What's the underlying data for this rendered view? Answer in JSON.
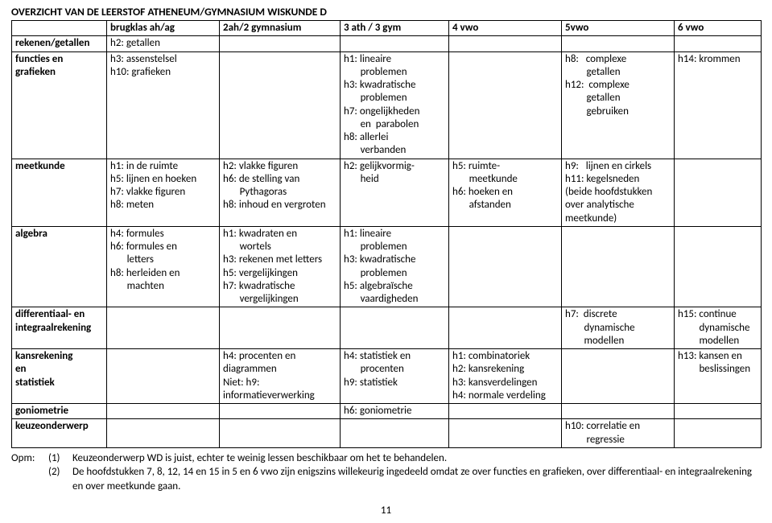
{
  "title": "OVERZICHT VAN DE LEERSTOF ATHENEUM/GYMNASIUM WISKUNDE D",
  "columns": [
    "",
    "brugklas ah/ag",
    "2ah/2 gymnasium",
    "3 ath / 3 gym",
    "4 vwo",
    "5vwo",
    "6 vwo"
  ],
  "rows": [
    {
      "label": "rekenen/getallen",
      "cells": [
        "h2: getallen",
        "",
        "",
        "",
        "",
        ""
      ]
    },
    {
      "label": "functies en\ngrafieken",
      "cells": [
        "h3: assenstelsel\nh10: grafieken",
        "",
        "h1: lineaire\n       problemen\nh3: kwadratische\n       problemen\nh7: ongelijkheden\n       en  parabolen\nh8: allerlei\n       verbanden",
        "",
        "h8:   complexe\n         getallen\nh12:  complexe\n         getallen\n         gebruiken",
        "h14: krommen"
      ]
    },
    {
      "label": "meetkunde",
      "cells": [
        "h1: in de ruimte\nh5: lijnen en hoeken\nh7: vlakke figuren\nh8: meten",
        "h2: vlakke figuren\nh6: de stelling van\n       Pythagoras\nh8: inhoud en vergroten",
        "h2: gelijkvormig-\n       heid",
        "h5: ruimte-\n       meetkunde\nh6: hoeken en\n       afstanden",
        "h9:   lijnen en cirkels\nh11: kegelsneden\n(beide hoofdstukken\nover analytische\nmeetkunde)",
        ""
      ]
    },
    {
      "label": "algebra",
      "cells": [
        "h4: formules\nh6: formules en\n       letters\nh8: herleiden en\n       machten",
        "h1: kwadraten en\n       wortels\nh3: rekenen met letters\nh5: vergelijkingen\nh7: kwadratische\n       vergelijkingen",
        "h1: lineaire\n       problemen\nh3: kwadratische\n       problemen\nh5: algebraïsche\n       vaardigheden",
        "",
        "",
        ""
      ]
    },
    {
      "label": "differentiaal- en\nintegraalrekening",
      "cells": [
        "",
        "",
        "",
        "",
        "h7:  discrete\n        dynamische\n        modellen",
        "h15: continue\n         dynamische\n         modellen"
      ]
    },
    {
      "label": "kansrekening\nen\nstatistiek",
      "cells": [
        "",
        "h4: procenten en\ndiagrammen\nNiet: h9:\ninformatieverwerking",
        "h4: statistiek en\n       procenten\nh9: statistiek",
        "h1: combinatoriek\nh2: kansrekening\nh3: kansverdelingen\nh4: normale verdeling",
        "",
        "h13: kansen en\n         beslissingen"
      ]
    },
    {
      "label": "goniometrie",
      "cells": [
        "",
        "",
        "h6: goniometrie",
        "",
        "",
        ""
      ]
    },
    {
      "label": "keuzeonderwerp",
      "cells": [
        "",
        "",
        "",
        "",
        "h10: correlatie en\n         regressie",
        ""
      ]
    }
  ],
  "notes": {
    "label": "Opm:",
    "items": [
      {
        "num": "(1)",
        "text": "Keuzeonderwerp WD is juist, echter te weinig lessen beschikbaar om het te behandelen."
      },
      {
        "num": "(2)",
        "text": "De hoofdstukken 7, 8, 12, 14 en 15  in 5 en  6 vwo zijn enigszins willekeurig ingedeeld omdat ze over functies en grafieken, over differentiaal- en integraalrekening en over meetkunde gaan."
      }
    ]
  },
  "page_number": "11",
  "style": {
    "font_family": "Calibri",
    "font_size_pt": 10,
    "border_color": "#000000",
    "background_color": "#ffffff",
    "text_color": "#000000"
  }
}
